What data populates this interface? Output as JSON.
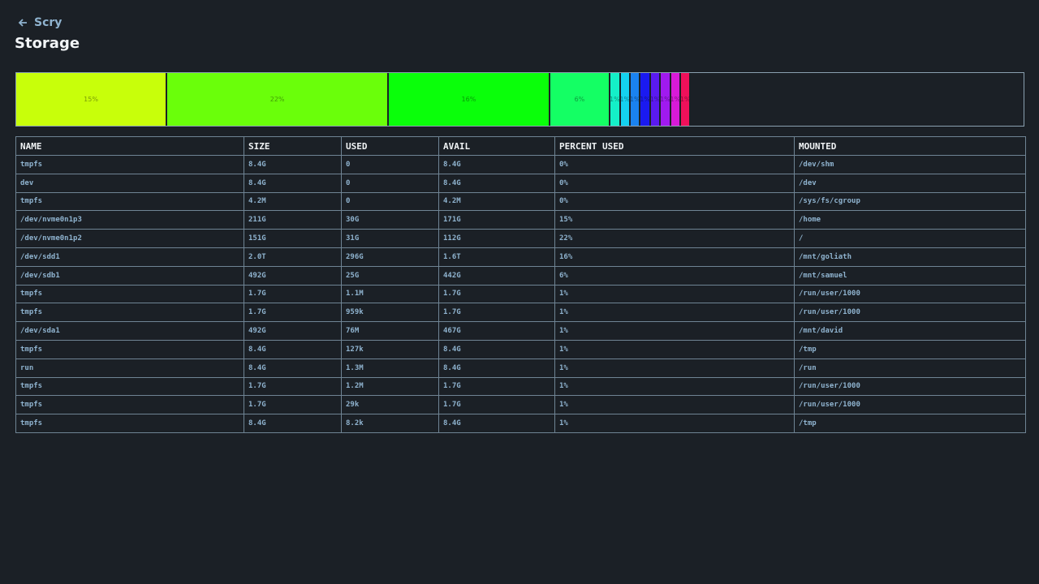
{
  "header": {
    "back_label": "Scry",
    "title": "Storage"
  },
  "usage_bar": {
    "segments": [
      {
        "value": 15,
        "label": "15%",
        "color": "#c8ff0a"
      },
      {
        "value": 22,
        "label": "22%",
        "color": "#6aff0a"
      },
      {
        "value": 16,
        "label": "16%",
        "color": "#0aff0a"
      },
      {
        "value": 6,
        "label": "6%",
        "color": "#14ff64"
      },
      {
        "value": 1,
        "label": "1%",
        "color": "#14f0c8"
      },
      {
        "value": 1,
        "label": "1%",
        "color": "#14d2f0"
      },
      {
        "value": 1,
        "label": "1%",
        "color": "#1a82f0"
      },
      {
        "value": 1,
        "label": "1%",
        "color": "#1a1af0"
      },
      {
        "value": 1,
        "label": "1%",
        "color": "#5a1af0"
      },
      {
        "value": 1,
        "label": "1%",
        "color": "#a01af0"
      },
      {
        "value": 1,
        "label": "1%",
        "color": "#d81ad8"
      },
      {
        "value": 1,
        "label": "1%",
        "color": "#f0105a"
      }
    ]
  },
  "table": {
    "headers": [
      "NAME",
      "SIZE",
      "USED",
      "AVAIL",
      "PERCENT USED",
      "MOUNTED"
    ],
    "rows": [
      [
        "tmpfs",
        "8.4G",
        "0",
        "8.4G",
        "0%",
        "/dev/shm"
      ],
      [
        "dev",
        "8.4G",
        "0",
        "8.4G",
        "0%",
        "/dev"
      ],
      [
        "tmpfs",
        "4.2M",
        "0",
        "4.2M",
        "0%",
        "/sys/fs/cgroup"
      ],
      [
        "/dev/nvme0n1p3",
        "211G",
        "30G",
        "171G",
        "15%",
        "/home"
      ],
      [
        "/dev/nvme0n1p2",
        "151G",
        "31G",
        "112G",
        "22%",
        "/"
      ],
      [
        "/dev/sdd1",
        "2.0T",
        "296G",
        "1.6T",
        "16%",
        "/mnt/goliath"
      ],
      [
        "/dev/sdb1",
        "492G",
        "25G",
        "442G",
        "6%",
        "/mnt/samuel"
      ],
      [
        "tmpfs",
        "1.7G",
        "1.1M",
        "1.7G",
        "1%",
        "/run/user/1000"
      ],
      [
        "tmpfs",
        "1.7G",
        "959k",
        "1.7G",
        "1%",
        "/run/user/1000"
      ],
      [
        "/dev/sda1",
        "492G",
        "76M",
        "467G",
        "1%",
        "/mnt/david"
      ],
      [
        "tmpfs",
        "8.4G",
        "127k",
        "8.4G",
        "1%",
        "/tmp"
      ],
      [
        "run",
        "8.4G",
        "1.3M",
        "8.4G",
        "1%",
        "/run"
      ],
      [
        "tmpfs",
        "1.7G",
        "1.2M",
        "1.7G",
        "1%",
        "/run/user/1000"
      ],
      [
        "tmpfs",
        "1.7G",
        "29k",
        "1.7G",
        "1%",
        "/run/user/1000"
      ],
      [
        "tmpfs",
        "8.4G",
        "8.2k",
        "8.4G",
        "1%",
        "/tmp"
      ]
    ]
  }
}
